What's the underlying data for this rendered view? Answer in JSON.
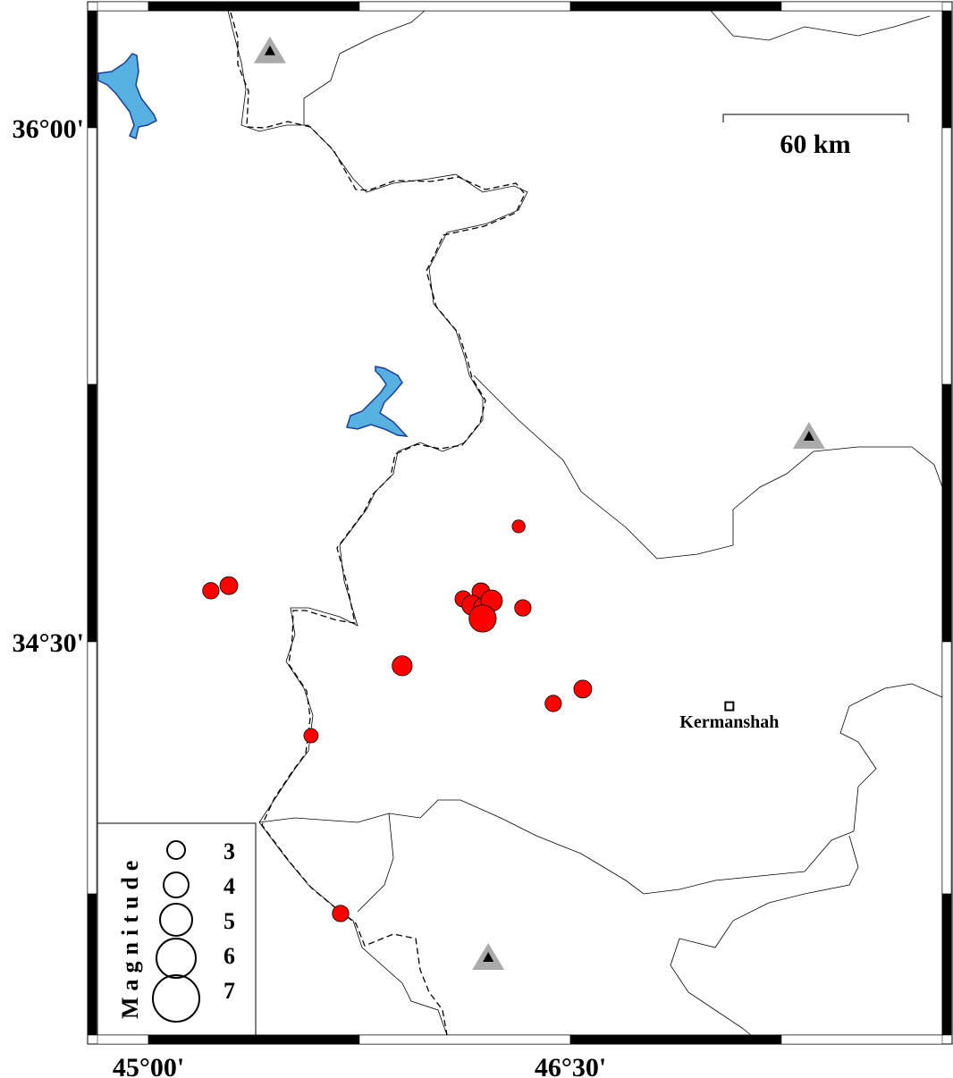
{
  "map": {
    "extent": {
      "lon_min": 44.787,
      "lon_max": 47.853,
      "lat_min": 33.331,
      "lat_max": 36.363
    },
    "lon_ticks": [
      {
        "value": 45.0,
        "label": "45°00'"
      },
      {
        "value": 46.5,
        "label": "46°30'"
      }
    ],
    "lat_ticks": [
      {
        "value": 36.0,
        "label": "36°00'"
      },
      {
        "value": 34.5,
        "label": "34°30'"
      }
    ],
    "scale_bar": {
      "label": "60 km",
      "length_km": 60
    },
    "city": {
      "name": "Kermanshah",
      "lon": 47.065,
      "lat": 34.312
    },
    "colors": {
      "event": "#ff0000",
      "water": "#56b0e0",
      "water_outline": "#1a3f9a",
      "station": "#aaaaaa",
      "station_inner": "#000000"
    },
    "stations": [
      {
        "lon": 45.432,
        "lat": 36.225
      },
      {
        "lon": 47.348,
        "lat": 35.1
      },
      {
        "lon": 46.208,
        "lat": 33.579
      }
    ],
    "events": [
      {
        "lon": 46.119,
        "lat": 34.625,
        "mag": 2.8
      },
      {
        "lon": 46.182,
        "lat": 34.646,
        "mag": 3.0
      },
      {
        "lon": 46.15,
        "lat": 34.607,
        "mag": 3.3
      },
      {
        "lon": 46.188,
        "lat": 34.602,
        "mag": 3.0
      },
      {
        "lon": 46.22,
        "lat": 34.62,
        "mag": 3.5
      },
      {
        "lon": 46.188,
        "lat": 34.568,
        "mag": 4.3
      },
      {
        "lon": 46.316,
        "lat": 34.837,
        "mag": 2.3
      },
      {
        "lon": 46.331,
        "lat": 34.599,
        "mag": 2.8
      },
      {
        "lon": 46.439,
        "lat": 34.32,
        "mag": 2.8
      },
      {
        "lon": 46.544,
        "lat": 34.362,
        "mag": 3.0
      },
      {
        "lon": 45.902,
        "lat": 34.43,
        "mag": 3.3
      },
      {
        "lon": 45.222,
        "lat": 34.649,
        "mag": 2.8
      },
      {
        "lon": 45.286,
        "lat": 34.664,
        "mag": 3.0
      },
      {
        "lon": 45.578,
        "lat": 34.226,
        "mag": 2.5
      },
      {
        "lon": 45.683,
        "lat": 33.707,
        "mag": 2.8
      }
    ]
  },
  "legend": {
    "title": "Magnitude",
    "items": [
      {
        "mag": 3,
        "label": "3"
      },
      {
        "mag": 4,
        "label": "4"
      },
      {
        "mag": 5,
        "label": "5"
      },
      {
        "mag": 6,
        "label": "6"
      },
      {
        "mag": 7,
        "label": "7"
      }
    ]
  }
}
